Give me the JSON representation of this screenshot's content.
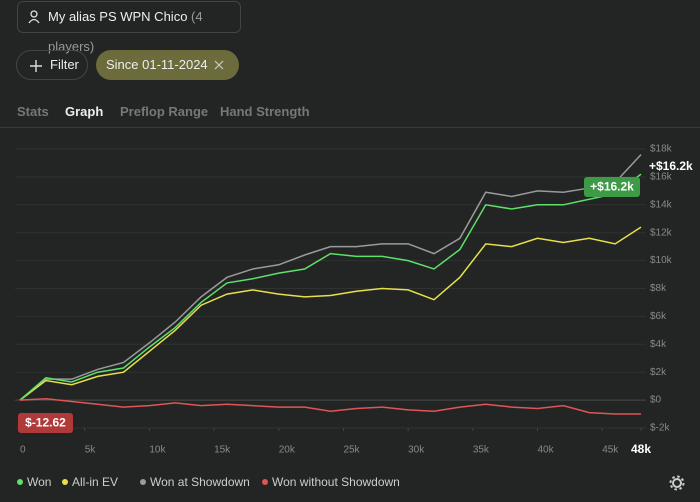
{
  "header": {
    "alias": "My alias PS WPN Chico",
    "players": "(4 players)"
  },
  "filters": {
    "filter": "Filter",
    "date": "Since 01-11-2024"
  },
  "tabs": [
    "Stats",
    "Graph",
    "Preflop Range",
    "Hand Strength"
  ],
  "chart_data": {
    "type": "line",
    "x": [
      0,
      2000,
      4000,
      6000,
      8000,
      10000,
      12000,
      14000,
      16000,
      18000,
      20000,
      22000,
      24000,
      26000,
      28000,
      30000,
      32000,
      34000,
      36000,
      38000,
      40000,
      42000,
      44000,
      46000,
      48000
    ],
    "series": [
      {
        "name": "Won",
        "color": "#5ee06a",
        "values": [
          0,
          1600,
          1300,
          2000,
          2300,
          3800,
          5200,
          7000,
          8400,
          8700,
          9100,
          9400,
          10500,
          10300,
          10300,
          10000,
          9400,
          10800,
          14000,
          13700,
          14000,
          14000,
          14400,
          14800,
          16200
        ]
      },
      {
        "name": "All-in EV",
        "color": "#e8e04a",
        "values": [
          0,
          1400,
          1100,
          1700,
          2000,
          3500,
          5000,
          6800,
          7600,
          7900,
          7600,
          7400,
          7500,
          7800,
          8000,
          7900,
          7200,
          8800,
          11200,
          11000,
          11600,
          11300,
          11600,
          11200,
          12400
        ]
      },
      {
        "name": "Won at Showdown",
        "color": "#9a9a9a",
        "values": [
          0,
          1500,
          1500,
          2200,
          2700,
          4100,
          5600,
          7400,
          8800,
          9400,
          9700,
          10400,
          11000,
          11000,
          11200,
          11200,
          10500,
          11600,
          14900,
          14600,
          15000,
          14900,
          15200,
          15600,
          17600
        ]
      },
      {
        "name": "Won without Showdown",
        "color": "#e05555",
        "values": [
          0,
          100,
          -100,
          -300,
          -500,
          -400,
          -200,
          -400,
          -300,
          -400,
          -500,
          -500,
          -800,
          -600,
          -500,
          -700,
          -800,
          -500,
          -300,
          -500,
          -600,
          -400,
          -900,
          -1000,
          -1000
        ]
      }
    ],
    "xlim": [
      0,
      48000
    ],
    "ylim": [
      -2000,
      18000
    ],
    "xticks": [
      0,
      {
        "value": 5000,
        "label": "5k"
      },
      {
        "value": 10000,
        "label": "10k"
      },
      {
        "value": 15000,
        "label": "15k"
      },
      {
        "value": 20000,
        "label": "20k"
      },
      {
        "value": 25000,
        "label": "25k"
      },
      {
        "value": 30000,
        "label": "30k"
      },
      {
        "value": 35000,
        "label": "35k"
      },
      {
        "value": 40000,
        "label": "40k"
      },
      {
        "value": 45000,
        "label": "45k"
      },
      {
        "value": 48000,
        "label": "48k"
      }
    ],
    "yticks": [
      {
        "value": -2000,
        "label": "$-2k"
      },
      {
        "value": 0,
        "label": "$0"
      },
      {
        "value": 2000,
        "label": "$2k"
      },
      {
        "value": 4000,
        "label": "$4k"
      },
      {
        "value": 6000,
        "label": "$6k"
      },
      {
        "value": 8000,
        "label": "$8k"
      },
      {
        "value": 10000,
        "label": "$10k"
      },
      {
        "value": 12000,
        "label": "$12k"
      },
      {
        "value": 14000,
        "label": "$14k"
      },
      {
        "value": 16000,
        "label": "$16k"
      },
      {
        "value": 18000,
        "label": "$18k"
      }
    ],
    "grid": true,
    "annotations": [
      "$-12.62",
      "+$16.2k",
      "+$16.2k"
    ]
  }
}
